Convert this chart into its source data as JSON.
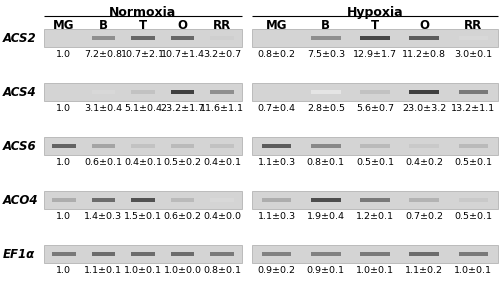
{
  "title_norm": "Normoxia",
  "title_hyp": "Hypoxia",
  "col_labels": [
    "MG",
    "B",
    "T",
    "O",
    "RR"
  ],
  "row_labels": [
    "ACS2",
    "ACS4",
    "ACS6",
    "ACO4",
    "EF1α"
  ],
  "norm_values": [
    [
      "1.0",
      "7.2±0.8",
      "10.7±2.1",
      "10.7±1.4",
      "3.2±0.7"
    ],
    [
      "1.0",
      "3.1±0.4",
      "5.1±0.4",
      "23.2±1.7",
      "11.6±1.1"
    ],
    [
      "1.0",
      "0.6±0.1",
      "0.4±0.1",
      "0.5±0.2",
      "0.4±0.1"
    ],
    [
      "1.0",
      "1.4±0.3",
      "1.5±0.1",
      "0.6±0.2",
      "0.4±0.0"
    ],
    [
      "1.0",
      "1.1±0.1",
      "1.0±0.1",
      "1.0±0.0",
      "0.8±0.1"
    ]
  ],
  "hyp_values": [
    [
      "0.8±0.2",
      "7.5±0.3",
      "12.9±1.7",
      "11.2±0.8",
      "3.0±0.1"
    ],
    [
      "0.7±0.4",
      "2.8±0.5",
      "5.6±0.7",
      "23.0±3.2",
      "13.2±1.1"
    ],
    [
      "1.1±0.3",
      "0.8±0.1",
      "0.5±0.1",
      "0.4±0.2",
      "0.5±0.1"
    ],
    [
      "1.1±0.3",
      "1.9±0.4",
      "1.2±0.1",
      "0.7±0.2",
      "0.5±0.1"
    ],
    [
      "0.9±0.2",
      "0.9±0.1",
      "1.0±0.1",
      "1.1±0.2",
      "1.0±0.1"
    ]
  ],
  "band_intensities_norm": [
    [
      0.02,
      0.52,
      0.7,
      0.7,
      0.22
    ],
    [
      0.02,
      0.18,
      0.28,
      0.88,
      0.52
    ],
    [
      0.72,
      0.42,
      0.28,
      0.32,
      0.28
    ],
    [
      0.38,
      0.68,
      0.8,
      0.32,
      0.18
    ],
    [
      0.62,
      0.68,
      0.68,
      0.68,
      0.62
    ]
  ],
  "band_intensities_hyp": [
    [
      0.02,
      0.52,
      0.85,
      0.75,
      0.18
    ],
    [
      0.02,
      0.12,
      0.28,
      0.88,
      0.62
    ],
    [
      0.75,
      0.55,
      0.32,
      0.25,
      0.32
    ],
    [
      0.38,
      0.82,
      0.62,
      0.35,
      0.25
    ],
    [
      0.58,
      0.58,
      0.62,
      0.68,
      0.62
    ]
  ],
  "gel_bg_light": "#d4d4d4",
  "gel_bg_dark": "#c8c8c8",
  "fig_bg": "#ffffff",
  "text_color": "#000000",
  "header_fontsize": 9,
  "label_fontsize": 8.5,
  "value_fontsize": 6.8,
  "col_label_fontsize": 8.5
}
